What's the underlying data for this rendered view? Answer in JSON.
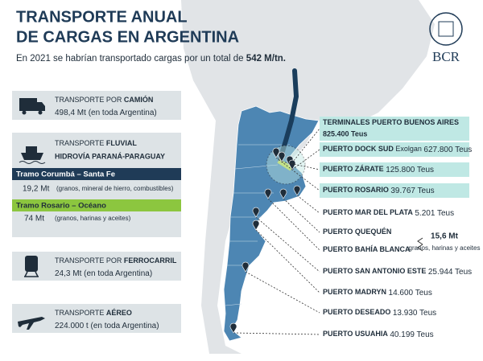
{
  "header": {
    "title_line1": "TRANSPORTE ANUAL",
    "title_line2": "DE CARGAS EN ARGENTINA",
    "subtitle": "En 2021 se habrían transportado cargas por un total de",
    "subtitle_total": "542 M/tn.",
    "logo": "BCR"
  },
  "modes": {
    "camion": {
      "label": "TRANSPORTE POR",
      "label_bold": "CAMIÓN",
      "value": "498,4 Mt",
      "note": "(en toda Argentina)"
    },
    "fluvial": {
      "label": "TRANSPORTE",
      "label_bold": "FLUVIAL",
      "subtitle": "HIDROVÍA PARANÁ-PARAGUAY",
      "tramos": [
        {
          "name": "Tramo Corumbá – Santa Fe",
          "value": "19,2 Mt",
          "note": "(granos, mineral de hierro, combustibles)"
        },
        {
          "name": "Tramo Rosario – Océano",
          "value": "74 Mt",
          "note": "(granos, harinas y aceites)"
        }
      ]
    },
    "ferrocarril": {
      "label": "TRANSPORTE POR",
      "label_bold": "FERROCARRIL",
      "value": "24,3 Mt",
      "note": "(en toda Argentina)"
    },
    "aereo": {
      "label": "TRANSPORTE",
      "label_bold": "AÉREO",
      "value": "224.000 t",
      "note": "(en toda Argentina)"
    }
  },
  "ports": [
    {
      "name": "TERMINALES PUERTO BUENOS AIRES",
      "value": "825.400 Teus"
    },
    {
      "name": "PUERTO DOCK SUD",
      "extra": "Exolgan",
      "value": "627.800 Teus"
    },
    {
      "name": "PUERTO ZÁRATE",
      "value": "125.800 Teus"
    },
    {
      "name": "PUERTO ROSARIO",
      "value": "39.767 Teus"
    },
    {
      "name": "PUERTO MAR DEL PLATA",
      "value": "5.201 Teus"
    },
    {
      "name": "PUERTO QUEQUÉN"
    },
    {
      "name": "PUERTO BAHÍA BLANCA"
    },
    {
      "name": "PUERTO SAN ANTONIO ESTE",
      "value": "25.944 Teus"
    },
    {
      "name": "PUERTO MADRYN",
      "value": "14.600 Teus"
    },
    {
      "name": "PUERTO DESEADO",
      "value": "13.930 Teus"
    },
    {
      "name": "PUERTO USUAHIA",
      "value": "40.199 Teus"
    }
  ],
  "ports_group": {
    "value": "15,6 Mt",
    "note": "granos, harinas y aceites"
  }
}
